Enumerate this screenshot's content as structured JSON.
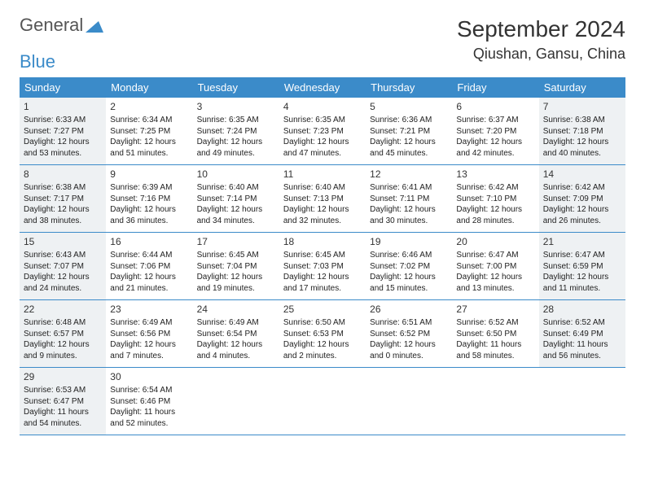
{
  "logo": {
    "text1": "General",
    "text2": "Blue"
  },
  "title": "September 2024",
  "location": "Qiushan, Gansu, China",
  "colors": {
    "header_bg": "#3b8bc9",
    "header_text": "#ffffff",
    "shade_bg": "#eef1f3",
    "border": "#3b8bc9",
    "body_text": "#222222"
  },
  "dow": [
    "Sunday",
    "Monday",
    "Tuesday",
    "Wednesday",
    "Thursday",
    "Friday",
    "Saturday"
  ],
  "weeks": [
    [
      {
        "n": "1",
        "sr": "Sunrise: 6:33 AM",
        "ss": "Sunset: 7:27 PM",
        "d1": "Daylight: 12 hours",
        "d2": "and 53 minutes.",
        "shaded": true
      },
      {
        "n": "2",
        "sr": "Sunrise: 6:34 AM",
        "ss": "Sunset: 7:25 PM",
        "d1": "Daylight: 12 hours",
        "d2": "and 51 minutes."
      },
      {
        "n": "3",
        "sr": "Sunrise: 6:35 AM",
        "ss": "Sunset: 7:24 PM",
        "d1": "Daylight: 12 hours",
        "d2": "and 49 minutes."
      },
      {
        "n": "4",
        "sr": "Sunrise: 6:35 AM",
        "ss": "Sunset: 7:23 PM",
        "d1": "Daylight: 12 hours",
        "d2": "and 47 minutes."
      },
      {
        "n": "5",
        "sr": "Sunrise: 6:36 AM",
        "ss": "Sunset: 7:21 PM",
        "d1": "Daylight: 12 hours",
        "d2": "and 45 minutes."
      },
      {
        "n": "6",
        "sr": "Sunrise: 6:37 AM",
        "ss": "Sunset: 7:20 PM",
        "d1": "Daylight: 12 hours",
        "d2": "and 42 minutes."
      },
      {
        "n": "7",
        "sr": "Sunrise: 6:38 AM",
        "ss": "Sunset: 7:18 PM",
        "d1": "Daylight: 12 hours",
        "d2": "and 40 minutes.",
        "shaded": true
      }
    ],
    [
      {
        "n": "8",
        "sr": "Sunrise: 6:38 AM",
        "ss": "Sunset: 7:17 PM",
        "d1": "Daylight: 12 hours",
        "d2": "and 38 minutes.",
        "shaded": true
      },
      {
        "n": "9",
        "sr": "Sunrise: 6:39 AM",
        "ss": "Sunset: 7:16 PM",
        "d1": "Daylight: 12 hours",
        "d2": "and 36 minutes."
      },
      {
        "n": "10",
        "sr": "Sunrise: 6:40 AM",
        "ss": "Sunset: 7:14 PM",
        "d1": "Daylight: 12 hours",
        "d2": "and 34 minutes."
      },
      {
        "n": "11",
        "sr": "Sunrise: 6:40 AM",
        "ss": "Sunset: 7:13 PM",
        "d1": "Daylight: 12 hours",
        "d2": "and 32 minutes."
      },
      {
        "n": "12",
        "sr": "Sunrise: 6:41 AM",
        "ss": "Sunset: 7:11 PM",
        "d1": "Daylight: 12 hours",
        "d2": "and 30 minutes."
      },
      {
        "n": "13",
        "sr": "Sunrise: 6:42 AM",
        "ss": "Sunset: 7:10 PM",
        "d1": "Daylight: 12 hours",
        "d2": "and 28 minutes."
      },
      {
        "n": "14",
        "sr": "Sunrise: 6:42 AM",
        "ss": "Sunset: 7:09 PM",
        "d1": "Daylight: 12 hours",
        "d2": "and 26 minutes.",
        "shaded": true
      }
    ],
    [
      {
        "n": "15",
        "sr": "Sunrise: 6:43 AM",
        "ss": "Sunset: 7:07 PM",
        "d1": "Daylight: 12 hours",
        "d2": "and 24 minutes.",
        "shaded": true
      },
      {
        "n": "16",
        "sr": "Sunrise: 6:44 AM",
        "ss": "Sunset: 7:06 PM",
        "d1": "Daylight: 12 hours",
        "d2": "and 21 minutes."
      },
      {
        "n": "17",
        "sr": "Sunrise: 6:45 AM",
        "ss": "Sunset: 7:04 PM",
        "d1": "Daylight: 12 hours",
        "d2": "and 19 minutes."
      },
      {
        "n": "18",
        "sr": "Sunrise: 6:45 AM",
        "ss": "Sunset: 7:03 PM",
        "d1": "Daylight: 12 hours",
        "d2": "and 17 minutes."
      },
      {
        "n": "19",
        "sr": "Sunrise: 6:46 AM",
        "ss": "Sunset: 7:02 PM",
        "d1": "Daylight: 12 hours",
        "d2": "and 15 minutes."
      },
      {
        "n": "20",
        "sr": "Sunrise: 6:47 AM",
        "ss": "Sunset: 7:00 PM",
        "d1": "Daylight: 12 hours",
        "d2": "and 13 minutes."
      },
      {
        "n": "21",
        "sr": "Sunrise: 6:47 AM",
        "ss": "Sunset: 6:59 PM",
        "d1": "Daylight: 12 hours",
        "d2": "and 11 minutes.",
        "shaded": true
      }
    ],
    [
      {
        "n": "22",
        "sr": "Sunrise: 6:48 AM",
        "ss": "Sunset: 6:57 PM",
        "d1": "Daylight: 12 hours",
        "d2": "and 9 minutes.",
        "shaded": true
      },
      {
        "n": "23",
        "sr": "Sunrise: 6:49 AM",
        "ss": "Sunset: 6:56 PM",
        "d1": "Daylight: 12 hours",
        "d2": "and 7 minutes."
      },
      {
        "n": "24",
        "sr": "Sunrise: 6:49 AM",
        "ss": "Sunset: 6:54 PM",
        "d1": "Daylight: 12 hours",
        "d2": "and 4 minutes."
      },
      {
        "n": "25",
        "sr": "Sunrise: 6:50 AM",
        "ss": "Sunset: 6:53 PM",
        "d1": "Daylight: 12 hours",
        "d2": "and 2 minutes."
      },
      {
        "n": "26",
        "sr": "Sunrise: 6:51 AM",
        "ss": "Sunset: 6:52 PM",
        "d1": "Daylight: 12 hours",
        "d2": "and 0 minutes."
      },
      {
        "n": "27",
        "sr": "Sunrise: 6:52 AM",
        "ss": "Sunset: 6:50 PM",
        "d1": "Daylight: 11 hours",
        "d2": "and 58 minutes."
      },
      {
        "n": "28",
        "sr": "Sunrise: 6:52 AM",
        "ss": "Sunset: 6:49 PM",
        "d1": "Daylight: 11 hours",
        "d2": "and 56 minutes.",
        "shaded": true
      }
    ],
    [
      {
        "n": "29",
        "sr": "Sunrise: 6:53 AM",
        "ss": "Sunset: 6:47 PM",
        "d1": "Daylight: 11 hours",
        "d2": "and 54 minutes.",
        "shaded": true
      },
      {
        "n": "30",
        "sr": "Sunrise: 6:54 AM",
        "ss": "Sunset: 6:46 PM",
        "d1": "Daylight: 11 hours",
        "d2": "and 52 minutes."
      },
      null,
      null,
      null,
      null,
      null
    ]
  ]
}
